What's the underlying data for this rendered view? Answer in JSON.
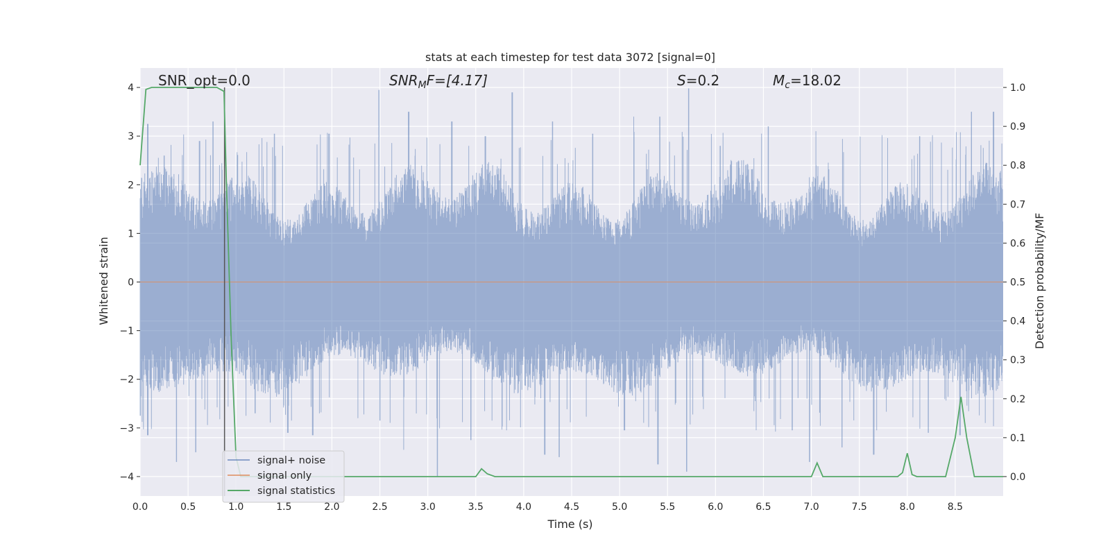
{
  "chart_data": {
    "type": "line",
    "title": "stats at each timestep for test data 3072 [signal=0]",
    "xlabel": "Time (s)",
    "ylabel": "Whitened strain",
    "ylabel_right": "Detection probability/MF",
    "xlim": [
      0.0,
      9.0
    ],
    "ylim": [
      -4.4,
      4.4
    ],
    "ylim_right": [
      -0.05,
      1.05
    ],
    "xticks": [
      "0.0",
      "0.5",
      "1.0",
      "1.5",
      "2.0",
      "2.5",
      "3.0",
      "3.5",
      "4.0",
      "4.5",
      "5.0",
      "5.5",
      "6.0",
      "6.5",
      "7.0",
      "7.5",
      "8.0",
      "8.5"
    ],
    "yticks": [
      "−4",
      "−3",
      "−2",
      "−1",
      "0",
      "1",
      "2",
      "3",
      "4"
    ],
    "yticks_right": [
      "0.0",
      "0.1",
      "0.2",
      "0.3",
      "0.4",
      "0.5",
      "0.6",
      "0.7",
      "0.8",
      "0.9",
      "1.0"
    ],
    "grid": true,
    "background": "#eaeaf2",
    "annotations": {
      "snr_opt": "SNR_opt=0.0",
      "snr_mf_italic": "SNR",
      "snr_mf_sub": "M",
      "snr_mf_rest": "F=[4.17]",
      "s_italic": "S",
      "s_rest": "=0.2",
      "mc_italic": "M",
      "mc_sub": "c",
      "mc_rest": "=18.02"
    },
    "vertical_marker_x": 0.88,
    "legend": {
      "position": "lower-left",
      "entries": [
        {
          "label": "signal+ noise",
          "color": "#4c72b0"
        },
        {
          "label": "signal only",
          "color": "#dd8452"
        },
        {
          "label": "signal statistics",
          "color": "#55a868"
        }
      ]
    },
    "series": [
      {
        "name": "signal+ noise",
        "color": "#4c72b0",
        "envelope_peaks": [
          [
            0.08,
            3.25
          ],
          [
            0.25,
            2.6
          ],
          [
            0.62,
            2.9
          ],
          [
            0.76,
            3.3
          ],
          [
            0.88,
            3.35
          ],
          [
            1.4,
            3.05
          ],
          [
            1.97,
            3.05
          ],
          [
            2.49,
            3.95
          ],
          [
            2.8,
            3.5
          ],
          [
            3.25,
            3.3
          ],
          [
            3.6,
            3.0
          ],
          [
            3.88,
            3.9
          ],
          [
            4.3,
            3.3
          ],
          [
            4.72,
            3.05
          ],
          [
            5.15,
            3.4
          ],
          [
            5.42,
            3.4
          ],
          [
            5.72,
            3.98
          ],
          [
            6.05,
            2.8
          ],
          [
            6.55,
            3.2
          ],
          [
            7.05,
            3.1
          ],
          [
            8.13,
            3.0
          ],
          [
            8.67,
            3.5
          ],
          [
            8.9,
            3.5
          ]
        ],
        "envelope_troughs": [
          [
            0.0,
            -2.75
          ],
          [
            0.08,
            -3.15
          ],
          [
            0.38,
            -3.7
          ],
          [
            0.58,
            -3.5
          ],
          [
            1.2,
            -2.7
          ],
          [
            1.54,
            -3.1
          ],
          [
            1.8,
            -3.15
          ],
          [
            2.5,
            -2.85
          ],
          [
            2.75,
            -3.45
          ],
          [
            3.1,
            -4.0
          ],
          [
            3.45,
            -3.25
          ],
          [
            4.22,
            -3.55
          ],
          [
            4.37,
            -3.6
          ],
          [
            5.05,
            -3.05
          ],
          [
            5.4,
            -3.75
          ],
          [
            5.7,
            -3.9
          ],
          [
            6.8,
            -3.05
          ],
          [
            6.98,
            -3.7
          ],
          [
            7.32,
            -3.4
          ],
          [
            7.65,
            -3.55
          ],
          [
            8.22,
            -3.1
          ],
          [
            8.55,
            -3.15
          ]
        ]
      },
      {
        "name": "signal only",
        "color": "#dd8452",
        "x": [
          0.0,
          9.0
        ],
        "y": [
          0.0,
          0.0
        ]
      },
      {
        "name": "signal statistics",
        "color": "#55a868",
        "axis": "right",
        "x": [
          0.0,
          0.06,
          0.12,
          0.2,
          0.4,
          0.6,
          0.8,
          0.875,
          0.9,
          0.95,
          1.0,
          1.05,
          1.2,
          1.5,
          2.0,
          2.5,
          3.0,
          3.5,
          3.56,
          3.62,
          3.7,
          4.0,
          5.0,
          6.0,
          7.0,
          7.06,
          7.12,
          7.5,
          7.9,
          7.95,
          8.0,
          8.05,
          8.1,
          8.4,
          8.5,
          8.56,
          8.62,
          8.7,
          9.0
        ],
        "y": [
          0.8,
          0.995,
          1.0,
          1.0,
          1.0,
          1.0,
          1.0,
          0.99,
          0.75,
          0.35,
          0.05,
          0.0,
          0.0,
          0.0,
          0.0,
          0.0,
          0.0,
          0.0,
          0.02,
          0.007,
          0.0,
          0.0,
          0.0,
          0.0,
          0.0,
          0.035,
          0.0,
          0.0,
          0.0,
          0.01,
          0.06,
          0.005,
          0.0,
          0.0,
          0.1,
          0.205,
          0.1,
          0.0,
          0.0
        ]
      }
    ]
  }
}
